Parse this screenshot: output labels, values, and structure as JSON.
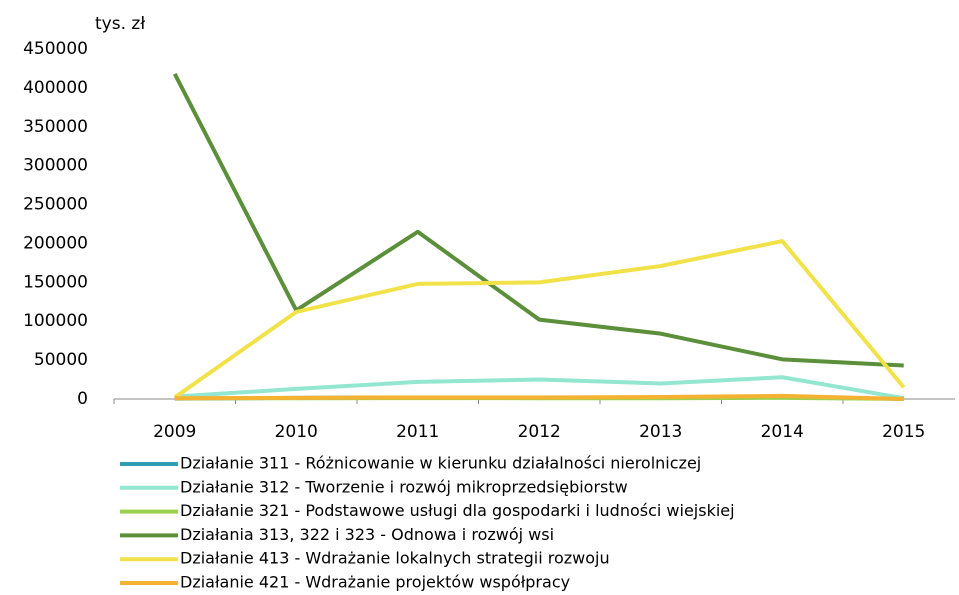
{
  "chart_data": {
    "type": "line",
    "y_label": "tys. zł",
    "categories": [
      "2009",
      "2010",
      "2011",
      "2012",
      "2013",
      "2014",
      "2015"
    ],
    "series": [
      {
        "name": "Działanie 311 - Różnicowanie w kierunku działalności nierolniczej",
        "color": "#2f9fb8",
        "values": [
          500,
          1500,
          2000,
          1500,
          1500,
          2000,
          300
        ]
      },
      {
        "name": "Działanie 312 - Tworzenie i rozwój mikroprzedsiębiorstw",
        "color": "#93e6cf",
        "values": [
          3000,
          13000,
          22000,
          25000,
          20000,
          28000,
          1000
        ]
      },
      {
        "name": "Działanie 321 - Podstawowe usługi dla gospodarki i ludności wiejskiej",
        "color": "#9dd04e",
        "values": [
          800,
          1000,
          1200,
          1000,
          1000,
          1500,
          200
        ]
      },
      {
        "name": "Działania 313, 322 i 323 - Odnowa i rozwój wsi",
        "color": "#5b8f3a",
        "values": [
          418000,
          114000,
          215000,
          102000,
          84000,
          51000,
          43000
        ]
      },
      {
        "name": "Działanie 413 - Wdrażanie lokalnych strategii rozwoju",
        "color": "#f2e24a",
        "values": [
          2000,
          112000,
          148000,
          150000,
          171000,
          203000,
          15000
        ]
      },
      {
        "name": "Działanie 421 - Wdrażanie projektów współpracy",
        "color": "#f5b132",
        "values": [
          1000,
          1500,
          2000,
          2000,
          2500,
          4000,
          0
        ]
      }
    ],
    "ylim": [
      0,
      450000
    ],
    "yticks": [
      0,
      50000,
      100000,
      150000,
      200000,
      250000,
      300000,
      350000,
      400000,
      450000
    ],
    "grid": false
  }
}
